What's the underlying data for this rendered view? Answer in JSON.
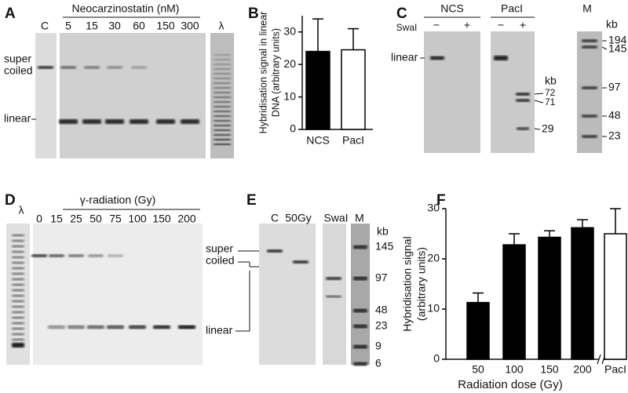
{
  "panel_labels": [
    "A",
    "B",
    "C",
    "D",
    "E",
    "F"
  ],
  "panel_a": {
    "header": "Neocarzinostatin (nM)",
    "lanes": [
      "C",
      "5",
      "15",
      "30",
      "60",
      "150",
      "300",
      "λ"
    ],
    "supercoiled": [
      "super",
      "coiled"
    ],
    "linear": "linear"
  },
  "panel_c": {
    "groups": [
      "NCS",
      "PacI"
    ],
    "enzyme": "SwaI",
    "lanes": [
      "−",
      "+",
      "−",
      "+"
    ],
    "linear": "linear",
    "kb": "kb",
    "sizes": [
      "72",
      "71",
      "29"
    ],
    "marker": "M",
    "marker_kb": "kb",
    "marker_sizes": [
      "194",
      "145",
      "97",
      "48",
      "23"
    ]
  },
  "panel_d": {
    "lambda": "λ",
    "header": "γ-radiation (Gy)",
    "lanes": [
      "0",
      "15",
      "25",
      "50",
      "75",
      "100",
      "150",
      "200"
    ]
  },
  "panel_e": {
    "lanes": [
      "C",
      "50Gy",
      "SwaI",
      "M"
    ],
    "kb": "kb",
    "marker_sizes": [
      "145",
      "97",
      "48",
      "23",
      "9",
      "6"
    ],
    "supercoiled": [
      "super",
      "coiled"
    ],
    "linear": "linear"
  },
  "chart_data": [
    {
      "type": "bar",
      "ylabel": [
        "Hybridisation signal in linear",
        "DNA (arbitrary units)"
      ],
      "categories": [
        "NCS",
        "PacI"
      ],
      "values": [
        24,
        24.5
      ],
      "errors": [
        10,
        6.5
      ],
      "colors": [
        "#000000",
        "#ffffff"
      ],
      "ylim": [
        0,
        35
      ],
      "yticks": [
        0,
        10,
        20,
        30
      ]
    },
    {
      "type": "bar",
      "ylabel": [
        "Hybridisation signal",
        "(arbitrary units)"
      ],
      "xlabel": "Radiation dose (Gy)",
      "categories": [
        "50",
        "100",
        "150",
        "200",
        "PacI"
      ],
      "values": [
        11.3,
        22.8,
        24.3,
        26.2,
        25
      ],
      "errors": [
        1.9,
        2.2,
        1.3,
        1.6,
        5
      ],
      "colors": [
        "#000000",
        "#000000",
        "#000000",
        "#000000",
        "#ffffff"
      ],
      "ylim": [
        0,
        30
      ],
      "yticks": [
        0,
        10,
        20,
        30
      ]
    }
  ]
}
